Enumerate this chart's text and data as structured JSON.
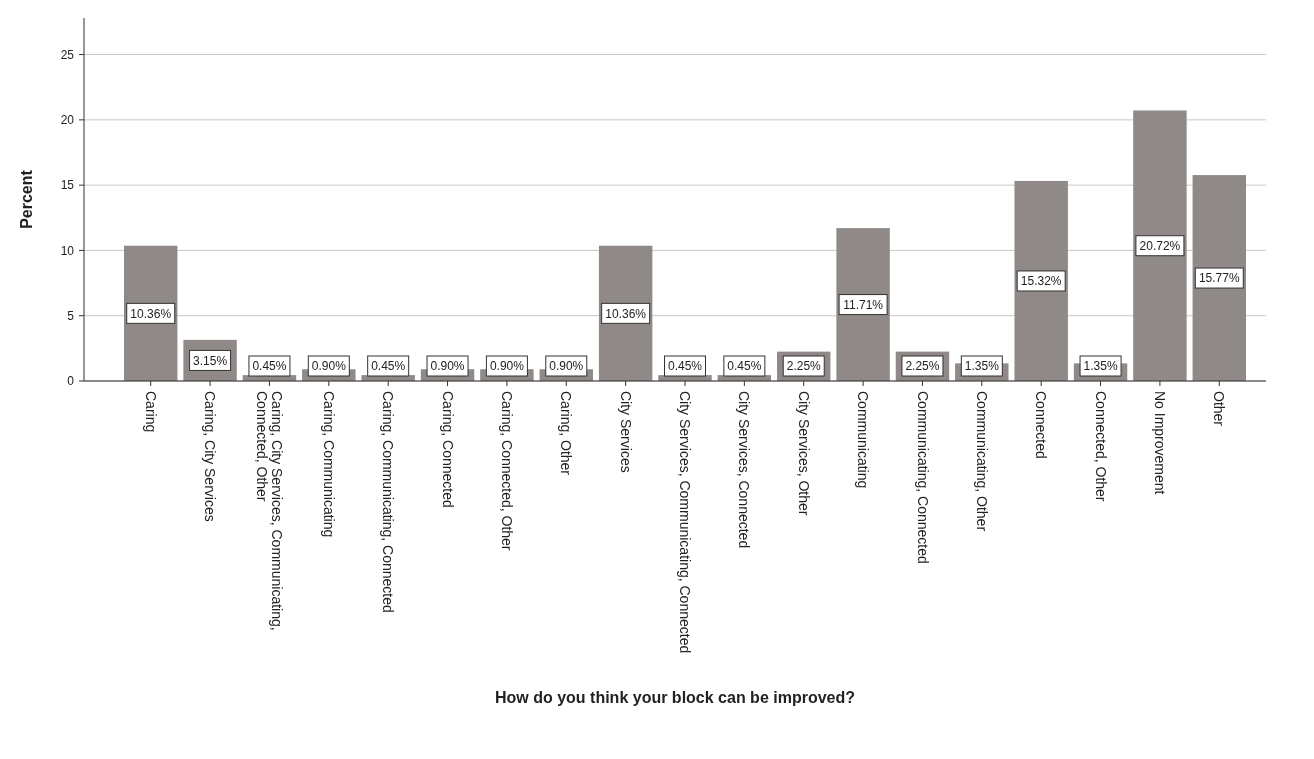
{
  "chart_data": {
    "type": "bar",
    "xlabel": "How do you think your block can be improved?",
    "ylabel": "Percent",
    "categories": [
      "Caring",
      "Caring, City Services",
      "Caring, City Services, Communicating, Connected, Other",
      "Caring, Communicating",
      "Caring, Communicating, Connected",
      "Caring, Connected",
      "Caring, Connected, Other",
      "Caring, Other",
      "City Services",
      "City Services, Communicating, Connected",
      "City Services, Connected",
      "City Services, Other",
      "Communicating",
      "Communicating, Connected",
      "Communicating, Other",
      "Connected",
      "Connected, Other",
      "No Improvement",
      "Other"
    ],
    "values": [
      10.36,
      3.15,
      0.45,
      0.9,
      0.45,
      0.9,
      0.9,
      0.9,
      10.36,
      0.45,
      0.45,
      2.25,
      11.71,
      2.25,
      1.35,
      15.32,
      1.35,
      20.72,
      15.77
    ],
    "value_labels": [
      "10.36%",
      "3.15%",
      "0.45%",
      "0.90%",
      "0.45%",
      "0.90%",
      "0.90%",
      "0.90%",
      "10.36%",
      "0.45%",
      "0.45%",
      "2.25%",
      "11.71%",
      "2.25%",
      "1.35%",
      "15.32%",
      "1.35%",
      "20.72%",
      "15.77%"
    ],
    "color": "#8f8a88",
    "ylim": [
      0,
      27.8
    ],
    "yticks": [
      0,
      5,
      10,
      15,
      20,
      25
    ],
    "grid": "y"
  }
}
